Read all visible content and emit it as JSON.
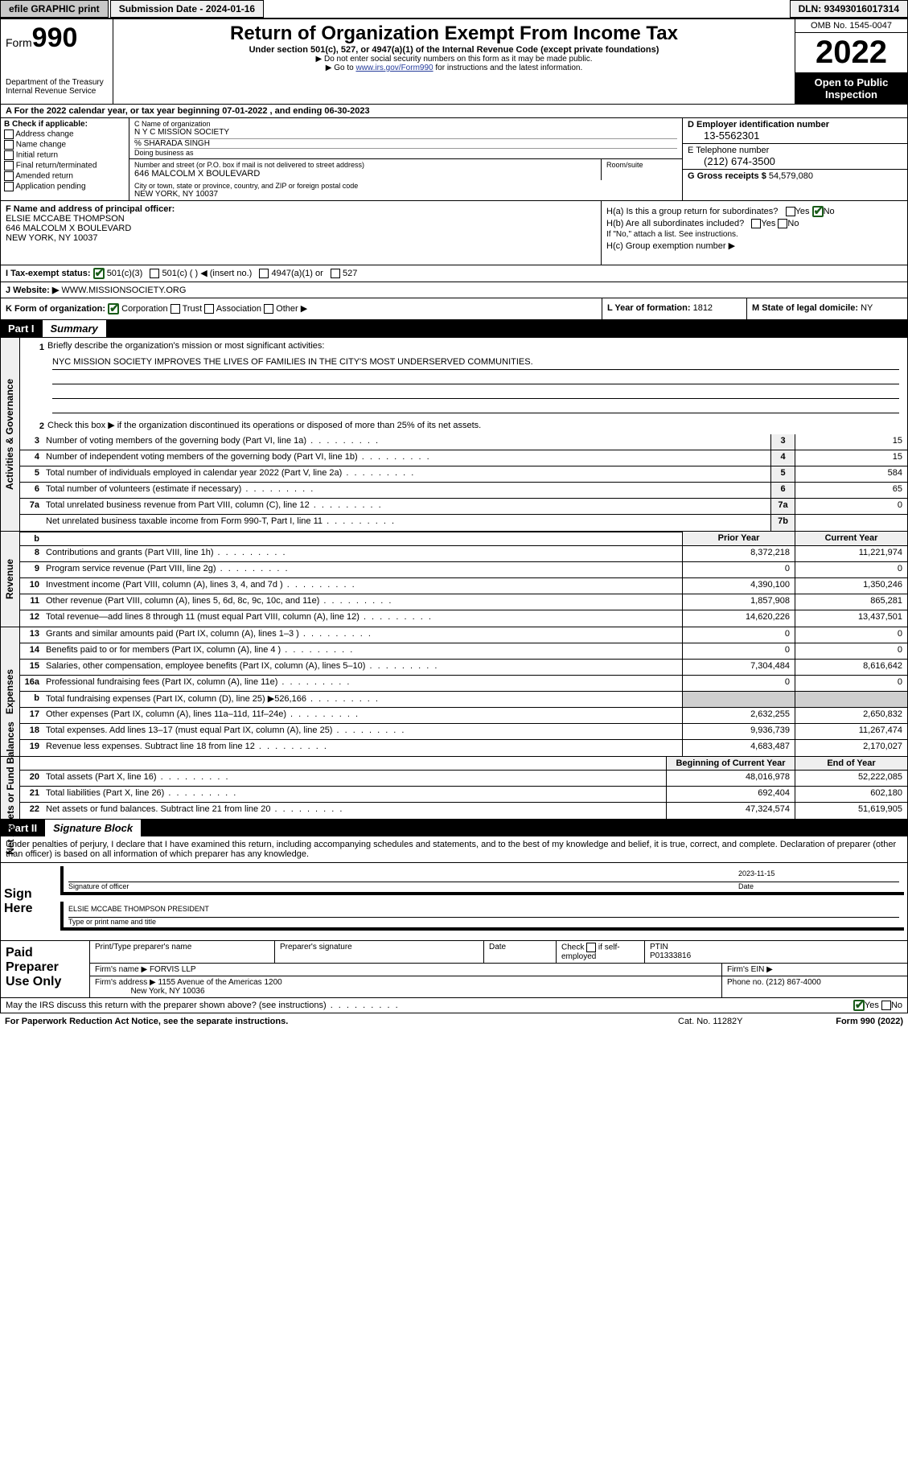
{
  "topbar": {
    "efile": "efile GRAPHIC print",
    "submission": "Submission Date - 2024-01-16",
    "dln": "DLN: 93493016017314"
  },
  "header": {
    "form_word": "Form",
    "form_num": "990",
    "dept": "Department of the Treasury",
    "irs": "Internal Revenue Service",
    "title": "Return of Organization Exempt From Income Tax",
    "sub": "Under section 501(c), 527, or 4947(a)(1) of the Internal Revenue Code (except private foundations)",
    "note1": "▶ Do not enter social security numbers on this form as it may be made public.",
    "note2_pre": "▶ Go to ",
    "note2_link": "www.irs.gov/Form990",
    "note2_post": " for instructions and the latest information.",
    "omb": "OMB No. 1545-0047",
    "year": "2022",
    "open": "Open to Public Inspection"
  },
  "rowA": "A For the 2022 calendar year, or tax year beginning 07-01-2022   , and ending 06-30-2023",
  "sectionB": {
    "title": "B Check if applicable:",
    "opts": [
      "Address change",
      "Name change",
      "Initial return",
      "Final return/terminated",
      "Amended return",
      "Application pending"
    ]
  },
  "sectionC": {
    "label": "C Name of organization",
    "name": "N Y C MISSION SOCIETY",
    "care": "% SHARADA SINGH",
    "dba": "Doing business as",
    "street_label": "Number and street (or P.O. box if mail is not delivered to street address)",
    "street": "646 MALCOLM X BOULEVARD",
    "room_label": "Room/suite",
    "city_label": "City or town, state or province, country, and ZIP or foreign postal code",
    "city": "NEW YORK, NY  10037"
  },
  "sectionD": {
    "label": "D Employer identification number",
    "val": "13-5562301"
  },
  "sectionE": {
    "label": "E Telephone number",
    "val": "(212) 674-3500"
  },
  "sectionG": {
    "label": "G Gross receipts $",
    "val": "54,579,080"
  },
  "sectionF": {
    "label": "F Name and address of principal officer:",
    "name": "ELSIE MCCABE THOMPSON",
    "street": "646 MALCOLM X BOULEVARD",
    "city": "NEW YORK, NY  10037"
  },
  "sectionH": {
    "ha": "H(a)  Is this a group return for subordinates?",
    "hb": "H(b)  Are all subordinates included?",
    "hb_note": "If \"No,\" attach a list. See instructions.",
    "hc": "H(c)  Group exemption number ▶",
    "yes": "Yes",
    "no": "No"
  },
  "rowI": {
    "label": "I   Tax-exempt status:",
    "o1": "501(c)(3)",
    "o2": "501(c) (  ) ◀ (insert no.)",
    "o3": "4947(a)(1) or",
    "o4": "527"
  },
  "rowJ": {
    "label": "J   Website: ▶",
    "val": "WWW.MISSIONSOCIETY.ORG"
  },
  "rowK": {
    "label": "K Form of organization:",
    "o1": "Corporation",
    "o2": "Trust",
    "o3": "Association",
    "o4": "Other ▶"
  },
  "rowL": {
    "label": "L Year of formation:",
    "val": "1812"
  },
  "rowM": {
    "label": "M State of legal domicile:",
    "val": "NY"
  },
  "partI": {
    "num": "Part I",
    "title": "Summary"
  },
  "summary": {
    "q1": "Briefly describe the organization's mission or most significant activities:",
    "mission": "NYC MISSION SOCIETY IMPROVES THE LIVES OF FAMILIES IN THE CITY'S MOST UNDERSERVED COMMUNITIES.",
    "q2": "Check this box ▶       if the organization discontinued its operations or disposed of more than 25% of its net assets.",
    "rows_gov": [
      {
        "n": "3",
        "t": "Number of voting members of the governing body (Part VI, line 1a)",
        "b": "3",
        "v": "15"
      },
      {
        "n": "4",
        "t": "Number of independent voting members of the governing body (Part VI, line 1b)",
        "b": "4",
        "v": "15"
      },
      {
        "n": "5",
        "t": "Total number of individuals employed in calendar year 2022 (Part V, line 2a)",
        "b": "5",
        "v": "584"
      },
      {
        "n": "6",
        "t": "Total number of volunteers (estimate if necessary)",
        "b": "6",
        "v": "65"
      },
      {
        "n": "7a",
        "t": "Total unrelated business revenue from Part VIII, column (C), line 12",
        "b": "7a",
        "v": "0"
      },
      {
        "n": "",
        "t": "Net unrelated business taxable income from Form 990-T, Part I, line 11",
        "b": "7b",
        "v": ""
      }
    ],
    "prior_label": "Prior Year",
    "current_label": "Current Year",
    "rows_rev": [
      {
        "n": "8",
        "t": "Contributions and grants (Part VIII, line 1h)",
        "p": "8,372,218",
        "c": "11,221,974"
      },
      {
        "n": "9",
        "t": "Program service revenue (Part VIII, line 2g)",
        "p": "0",
        "c": "0"
      },
      {
        "n": "10",
        "t": "Investment income (Part VIII, column (A), lines 3, 4, and 7d )",
        "p": "4,390,100",
        "c": "1,350,246"
      },
      {
        "n": "11",
        "t": "Other revenue (Part VIII, column (A), lines 5, 6d, 8c, 9c, 10c, and 11e)",
        "p": "1,857,908",
        "c": "865,281"
      },
      {
        "n": "12",
        "t": "Total revenue—add lines 8 through 11 (must equal Part VIII, column (A), line 12)",
        "p": "14,620,226",
        "c": "13,437,501"
      }
    ],
    "rows_exp": [
      {
        "n": "13",
        "t": "Grants and similar amounts paid (Part IX, column (A), lines 1–3 )",
        "p": "0",
        "c": "0"
      },
      {
        "n": "14",
        "t": "Benefits paid to or for members (Part IX, column (A), line 4 )",
        "p": "0",
        "c": "0"
      },
      {
        "n": "15",
        "t": "Salaries, other compensation, employee benefits (Part IX, column (A), lines 5–10)",
        "p": "7,304,484",
        "c": "8,616,642"
      },
      {
        "n": "16a",
        "t": "Professional fundraising fees (Part IX, column (A), line 11e)",
        "p": "0",
        "c": "0"
      },
      {
        "n": "b",
        "t": "Total fundraising expenses (Part IX, column (D), line 25) ▶526,166",
        "p": "gray",
        "c": "gray"
      },
      {
        "n": "17",
        "t": "Other expenses (Part IX, column (A), lines 11a–11d, 11f–24e)",
        "p": "2,632,255",
        "c": "2,650,832"
      },
      {
        "n": "18",
        "t": "Total expenses. Add lines 13–17 (must equal Part IX, column (A), line 25)",
        "p": "9,936,739",
        "c": "11,267,474"
      },
      {
        "n": "19",
        "t": "Revenue less expenses. Subtract line 18 from line 12",
        "p": "4,683,487",
        "c": "2,170,027"
      }
    ],
    "begin_label": "Beginning of Current Year",
    "end_label": "End of Year",
    "rows_net": [
      {
        "n": "20",
        "t": "Total assets (Part X, line 16)",
        "p": "48,016,978",
        "c": "52,222,085"
      },
      {
        "n": "21",
        "t": "Total liabilities (Part X, line 26)",
        "p": "692,404",
        "c": "602,180"
      },
      {
        "n": "22",
        "t": "Net assets or fund balances. Subtract line 21 from line 20",
        "p": "47,324,574",
        "c": "51,619,905"
      }
    ]
  },
  "vtabs": {
    "gov": "Activities & Governance",
    "rev": "Revenue",
    "exp": "Expenses",
    "net": "Net Assets or Fund Balances"
  },
  "partII": {
    "num": "Part II",
    "title": "Signature Block"
  },
  "sig": {
    "intro": "Under penalties of perjury, I declare that I have examined this return, including accompanying schedules and statements, and to the best of my knowledge and belief, it is true, correct, and complete. Declaration of preparer (other than officer) is based on all information of which preparer has any knowledge.",
    "sign_here": "Sign Here",
    "sig_label": "Signature of officer",
    "date_label": "Date",
    "date_val": "2023-11-15",
    "name": "ELSIE MCCABE THOMPSON  PRESIDENT",
    "name_label": "Type or print name and title"
  },
  "prep": {
    "label": "Paid Preparer Use Only",
    "h1": "Print/Type preparer's name",
    "h2": "Preparer's signature",
    "h3": "Date",
    "h4_a": "Check",
    "h4_b": "if self-employed",
    "h5": "PTIN",
    "ptin": "P01333816",
    "firm_label": "Firm's name   ▶",
    "firm": "FORVIS LLP",
    "ein_label": "Firm's EIN ▶",
    "addr_label": "Firm's address ▶",
    "addr1": "1155 Avenue of the Americas 1200",
    "addr2": "New York, NY  10036",
    "phone_label": "Phone no.",
    "phone": "(212) 867-4000"
  },
  "footer": {
    "irs_discuss": "May the IRS discuss this return with the preparer shown above? (see instructions)",
    "yes": "Yes",
    "no": "No",
    "paperwork": "For Paperwork Reduction Act Notice, see the separate instructions.",
    "cat": "Cat. No. 11282Y",
    "form": "Form 990 (2022)"
  }
}
